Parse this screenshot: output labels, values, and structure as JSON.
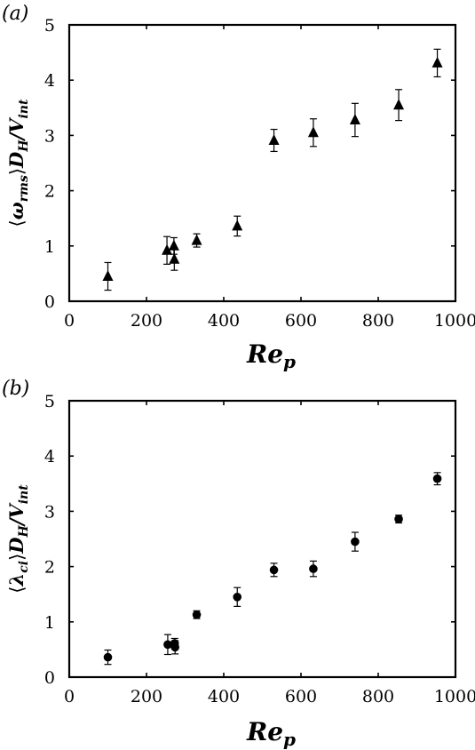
{
  "chart_data": [
    {
      "type": "scatter",
      "panel_label": "(a)",
      "xlabel_main": "Re",
      "xlabel_sub": "p",
      "ylabel_parts": {
        "open": "⟨",
        "symbol": "ω",
        "sub": "rms",
        "close": "⟩",
        "mid": "D",
        "mid_sub": "H",
        "slash": "/V",
        "tail_sub": "int"
      },
      "xlim": [
        0,
        1000
      ],
      "ylim": [
        0,
        5
      ],
      "xticks": [
        "0",
        "200",
        "400",
        "600",
        "800",
        "1000"
      ],
      "yticks": [
        "0",
        "1",
        "2",
        "3",
        "4",
        "5"
      ],
      "marker": "triangle",
      "points": [
        {
          "x": 100,
          "y": 0.45,
          "err": 0.25
        },
        {
          "x": 253,
          "y": 0.92,
          "err": 0.25
        },
        {
          "x": 271,
          "y": 1.0,
          "err": 0.15
        },
        {
          "x": 272,
          "y": 0.76,
          "err": 0.2
        },
        {
          "x": 330,
          "y": 1.1,
          "err": 0.12
        },
        {
          "x": 435,
          "y": 1.36,
          "err": 0.18
        },
        {
          "x": 530,
          "y": 2.91,
          "err": 0.2
        },
        {
          "x": 632,
          "y": 3.05,
          "err": 0.25
        },
        {
          "x": 740,
          "y": 3.28,
          "err": 0.3
        },
        {
          "x": 853,
          "y": 3.55,
          "err": 0.28
        },
        {
          "x": 953,
          "y": 4.31,
          "err": 0.25
        }
      ]
    },
    {
      "type": "scatter",
      "panel_label": "(b)",
      "xlabel_main": "Re",
      "xlabel_sub": "p",
      "ylabel_parts": {
        "open": "⟨",
        "symbol": "λ",
        "sub": "ci",
        "close": "⟩",
        "mid": "D",
        "mid_sub": "H",
        "slash": "/V",
        "tail_sub": "int"
      },
      "xlim": [
        0,
        1000
      ],
      "ylim": [
        0,
        5
      ],
      "xticks": [
        "0",
        "200",
        "400",
        "600",
        "800",
        "1000"
      ],
      "yticks": [
        "0",
        "1",
        "2",
        "3",
        "4",
        "5"
      ],
      "marker": "circle",
      "points": [
        {
          "x": 100,
          "y": 0.36,
          "err": 0.13
        },
        {
          "x": 255,
          "y": 0.59,
          "err": 0.18
        },
        {
          "x": 273,
          "y": 0.61,
          "err": 0.09
        },
        {
          "x": 274,
          "y": 0.54,
          "err": 0.12
        },
        {
          "x": 330,
          "y": 1.13,
          "err": 0.07
        },
        {
          "x": 435,
          "y": 1.45,
          "err": 0.17
        },
        {
          "x": 530,
          "y": 1.94,
          "err": 0.12
        },
        {
          "x": 632,
          "y": 1.96,
          "err": 0.14
        },
        {
          "x": 740,
          "y": 2.45,
          "err": 0.17
        },
        {
          "x": 853,
          "y": 2.86,
          "err": 0.07
        },
        {
          "x": 953,
          "y": 3.59,
          "err": 0.11
        }
      ]
    }
  ]
}
